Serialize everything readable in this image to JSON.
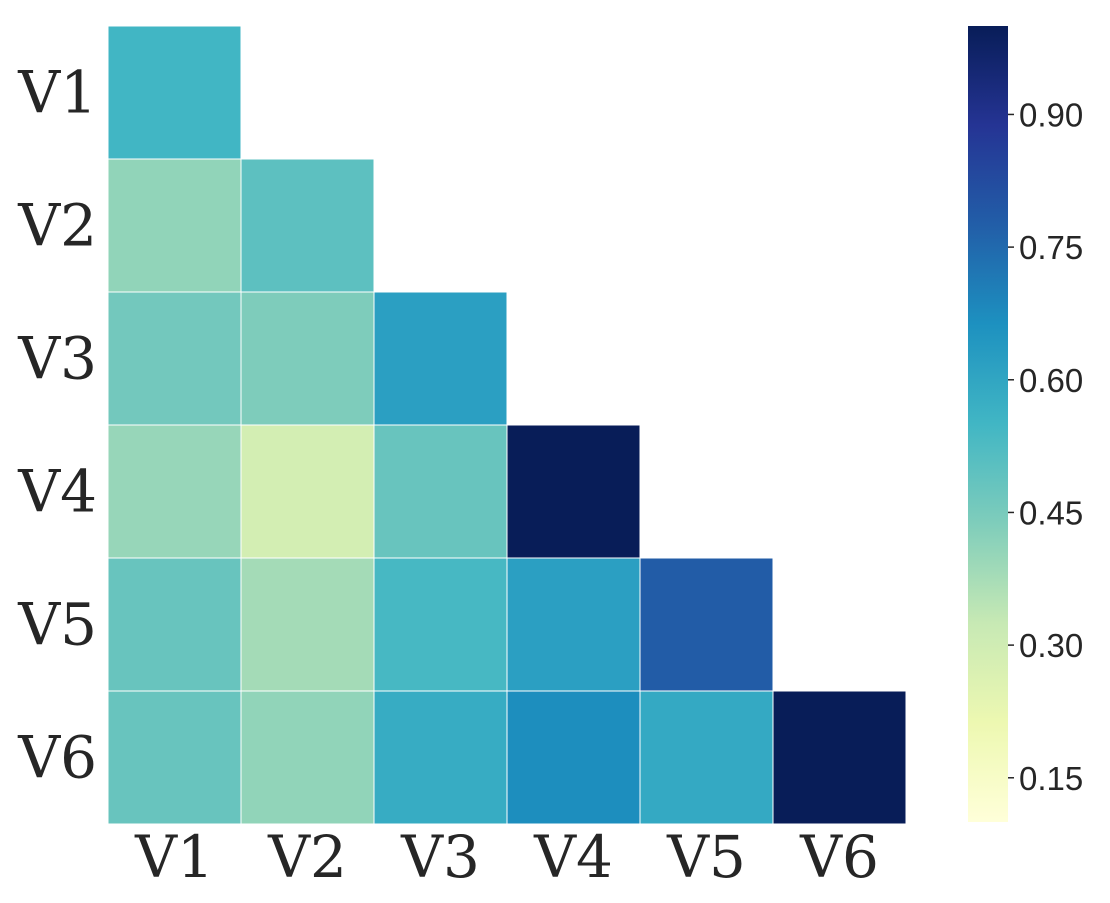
{
  "chart_data": {
    "type": "heatmap",
    "title": "",
    "xlabel": "",
    "ylabel": "",
    "rows": [
      "V1",
      "V2",
      "V3",
      "V4",
      "V5",
      "V6"
    ],
    "cols": [
      "V1",
      "V2",
      "V3",
      "V4",
      "V5",
      "V6"
    ],
    "mask": "upper-triangle",
    "values": [
      [
        0.55,
        null,
        null,
        null,
        null,
        null
      ],
      [
        0.41,
        0.5,
        null,
        null,
        null,
        null
      ],
      [
        0.46,
        0.44,
        0.62,
        null,
        null,
        null
      ],
      [
        0.4,
        0.29,
        0.48,
        1.0,
        null,
        null
      ],
      [
        0.48,
        0.38,
        0.54,
        0.62,
        0.78,
        null
      ],
      [
        0.48,
        0.41,
        0.58,
        0.67,
        0.59,
        1.0
      ]
    ],
    "colorbar": {
      "colormap": "YlGnBu",
      "vmin": 0.1,
      "vmax": 1.0,
      "ticks": [
        0.15,
        0.3,
        0.45,
        0.6,
        0.75,
        0.9
      ],
      "tick_labels": [
        "0.15",
        "0.30",
        "0.45",
        "0.60",
        "0.75",
        "0.90"
      ]
    }
  }
}
